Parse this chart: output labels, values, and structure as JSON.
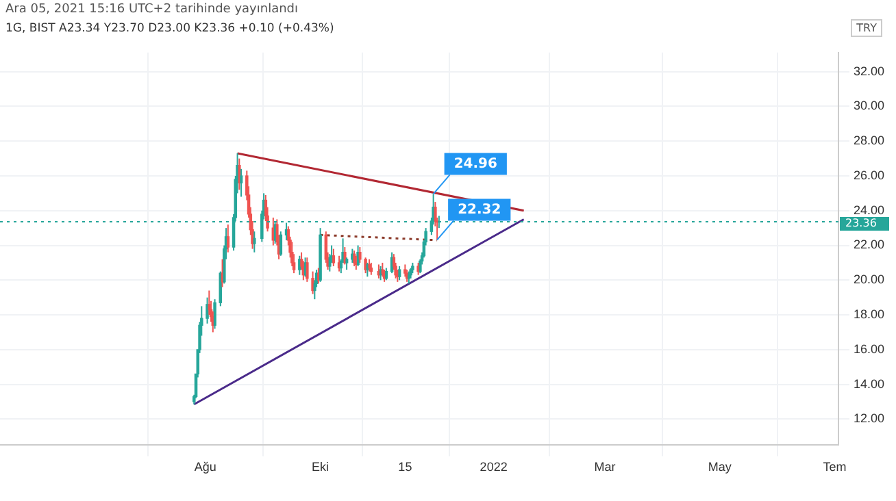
{
  "chart_data": {
    "type": "candlestick",
    "title": "Ara 05, 2021 15:16 UTC+2 tarihinde yayınlandı",
    "subtitle": "1G, BIST  A23.34  Y23.70  D23.00  K23.36  +0.10 (+0.43%)",
    "ylabel": "TRY",
    "x": [
      "2021-07-26",
      "2021-07-27",
      "2021-07-28",
      "2021-07-29",
      "2021-07-30",
      "2021-08-02",
      "2021-08-03",
      "2021-08-04",
      "2021-08-05",
      "2021-08-06",
      "2021-08-09",
      "2021-08-10",
      "2021-08-11",
      "2021-08-12",
      "2021-08-13",
      "2021-08-16",
      "2021-08-17",
      "2021-08-18",
      "2021-08-19",
      "2021-08-20",
      "2021-08-23",
      "2021-08-24",
      "2021-08-25",
      "2021-08-26",
      "2021-08-27",
      "2021-08-31",
      "2021-09-01",
      "2021-09-02",
      "2021-09-03",
      "2021-09-06",
      "2021-09-07",
      "2021-09-08",
      "2021-09-09",
      "2021-09-10",
      "2021-09-13",
      "2021-09-14",
      "2021-09-15",
      "2021-09-16",
      "2021-09-17",
      "2021-09-20",
      "2021-09-21",
      "2021-09-22",
      "2021-09-23",
      "2021-09-24",
      "2021-09-27",
      "2021-09-28",
      "2021-09-29",
      "2021-09-30",
      "2021-10-01",
      "2021-10-04",
      "2021-10-05",
      "2021-10-06",
      "2021-10-07",
      "2021-10-08",
      "2021-10-11",
      "2021-10-12",
      "2021-10-13",
      "2021-10-14",
      "2021-10-15",
      "2021-10-18",
      "2021-10-19",
      "2021-10-20",
      "2021-10-21",
      "2021-10-22",
      "2021-10-25",
      "2021-10-26",
      "2021-10-27",
      "2021-10-28",
      "2021-11-01",
      "2021-11-02",
      "2021-11-03",
      "2021-11-04",
      "2021-11-05",
      "2021-11-08",
      "2021-11-09",
      "2021-11-10",
      "2021-11-11",
      "2021-11-12",
      "2021-11-15",
      "2021-11-16",
      "2021-11-17",
      "2021-11-18",
      "2021-11-19",
      "2021-11-22",
      "2021-11-23",
      "2021-11-24",
      "2021-11-25",
      "2021-11-26",
      "2021-11-29",
      "2021-11-30",
      "2021-12-01",
      "2021-12-02",
      "2021-12-03"
    ],
    "ohlc": [
      [
        13.0,
        13.4,
        12.85,
        13.3
      ],
      [
        13.3,
        14.6,
        13.2,
        14.6
      ],
      [
        14.6,
        16.0,
        14.4,
        16.0
      ],
      [
        16.0,
        17.6,
        15.8,
        17.4
      ],
      [
        17.4,
        18.5,
        16.8,
        17.8
      ],
      [
        17.8,
        19.0,
        17.5,
        18.6
      ],
      [
        18.6,
        19.4,
        18.0,
        18.3
      ],
      [
        18.3,
        18.8,
        17.6,
        17.9
      ],
      [
        17.9,
        18.2,
        17.0,
        17.4
      ],
      [
        17.4,
        18.9,
        17.2,
        18.7
      ],
      [
        18.7,
        20.5,
        18.5,
        20.4
      ],
      [
        20.4,
        21.2,
        19.6,
        19.9
      ],
      [
        19.9,
        22.0,
        19.8,
        21.8
      ],
      [
        21.8,
        23.0,
        21.2,
        22.5
      ],
      [
        22.5,
        23.2,
        21.6,
        21.9
      ],
      [
        21.9,
        23.8,
        21.7,
        23.6
      ],
      [
        23.6,
        26.0,
        23.4,
        25.8
      ],
      [
        25.8,
        27.3,
        25.0,
        26.6
      ],
      [
        26.6,
        27.0,
        25.2,
        25.6
      ],
      [
        25.6,
        26.4,
        24.8,
        26.0
      ],
      [
        26.0,
        26.3,
        24.6,
        24.9
      ],
      [
        24.9,
        25.4,
        23.6,
        23.8
      ],
      [
        23.8,
        24.2,
        22.6,
        22.9
      ],
      [
        22.9,
        23.4,
        21.8,
        22.1
      ],
      [
        22.1,
        22.8,
        21.6,
        22.4
      ],
      [
        22.4,
        24.0,
        22.2,
        23.8
      ],
      [
        23.8,
        25.0,
        23.5,
        24.6
      ],
      [
        24.6,
        24.9,
        23.4,
        23.7
      ],
      [
        23.7,
        24.2,
        22.8,
        23.0
      ],
      [
        23.0,
        23.6,
        22.0,
        22.3
      ],
      [
        22.3,
        23.4,
        22.1,
        23.2
      ],
      [
        23.2,
        23.5,
        22.0,
        22.2
      ],
      [
        22.2,
        22.6,
        21.2,
        21.5
      ],
      [
        21.5,
        22.8,
        21.4,
        22.6
      ],
      [
        22.6,
        23.3,
        22.3,
        22.9
      ],
      [
        22.9,
        23.1,
        22.0,
        22.3
      ],
      [
        22.3,
        22.5,
        21.3,
        21.6
      ],
      [
        21.6,
        22.2,
        20.8,
        21.0
      ],
      [
        21.0,
        21.5,
        20.4,
        20.6
      ],
      [
        20.6,
        21.4,
        20.3,
        21.2
      ],
      [
        21.2,
        21.6,
        20.6,
        20.8
      ],
      [
        20.8,
        21.1,
        20.0,
        20.3
      ],
      [
        20.3,
        21.3,
        20.2,
        21.0
      ],
      [
        21.0,
        21.3,
        19.9,
        20.1
      ],
      [
        20.1,
        20.5,
        19.2,
        19.4
      ],
      [
        19.4,
        20.0,
        18.9,
        19.8
      ],
      [
        19.8,
        20.6,
        19.6,
        20.4
      ],
      [
        20.4,
        20.7,
        19.8,
        20.0
      ],
      [
        20.0,
        23.0,
        19.9,
        22.6
      ],
      [
        22.6,
        22.8,
        21.0,
        21.2
      ],
      [
        21.2,
        21.6,
        20.6,
        20.8
      ],
      [
        20.8,
        21.5,
        20.5,
        21.3
      ],
      [
        21.3,
        22.0,
        21.0,
        21.4
      ],
      [
        21.4,
        21.8,
        20.8,
        21.0
      ],
      [
        21.0,
        21.4,
        20.5,
        20.7
      ],
      [
        20.7,
        21.2,
        20.4,
        21.1
      ],
      [
        21.1,
        22.4,
        21.0,
        21.6
      ],
      [
        21.6,
        21.9,
        20.9,
        21.0
      ],
      [
        21.0,
        21.3,
        20.6,
        21.2
      ],
      [
        21.2,
        21.8,
        21.0,
        21.5
      ],
      [
        21.5,
        21.7,
        20.8,
        21.0
      ],
      [
        21.0,
        21.4,
        20.6,
        20.9
      ],
      [
        20.9,
        22.0,
        20.8,
        21.6
      ],
      [
        21.6,
        21.9,
        21.0,
        21.2
      ],
      [
        21.2,
        21.3,
        20.4,
        20.6
      ],
      [
        20.6,
        21.0,
        20.2,
        20.9
      ],
      [
        20.9,
        21.2,
        20.5,
        20.7
      ],
      [
        20.7,
        21.0,
        20.3,
        20.5
      ],
      [
        20.5,
        20.9,
        20.1,
        20.3
      ],
      [
        20.3,
        20.8,
        20.0,
        20.6
      ],
      [
        20.6,
        21.0,
        20.2,
        20.4
      ],
      [
        20.4,
        20.6,
        19.9,
        20.1
      ],
      [
        20.1,
        20.7,
        20.0,
        20.5
      ],
      [
        20.5,
        21.6,
        20.4,
        21.3
      ],
      [
        21.3,
        21.5,
        20.6,
        20.8
      ],
      [
        20.8,
        21.0,
        20.1,
        20.3
      ],
      [
        20.3,
        20.6,
        19.9,
        20.2
      ],
      [
        20.2,
        20.8,
        20.0,
        20.6
      ],
      [
        20.6,
        20.9,
        20.2,
        20.4
      ],
      [
        20.4,
        20.6,
        19.9,
        20.1
      ],
      [
        20.1,
        20.5,
        19.8,
        20.3
      ],
      [
        20.3,
        20.7,
        20.1,
        20.6
      ],
      [
        20.6,
        21.0,
        20.4,
        20.8
      ],
      [
        20.8,
        21.0,
        20.3,
        20.5
      ],
      [
        20.5,
        21.2,
        20.4,
        21.1
      ],
      [
        21.1,
        21.6,
        20.9,
        21.4
      ],
      [
        21.4,
        22.3,
        21.3,
        22.2
      ],
      [
        22.2,
        23.0,
        22.0,
        22.8
      ],
      [
        22.8,
        23.6,
        22.6,
        23.4
      ],
      [
        23.4,
        24.96,
        23.2,
        24.2
      ],
      [
        24.2,
        24.5,
        23.1,
        23.4
      ],
      [
        23.4,
        23.6,
        22.32,
        23.34
      ],
      [
        23.34,
        23.7,
        23.0,
        23.36
      ]
    ],
    "colors": [
      "#26a69a",
      "#26a69a",
      "#26a69a",
      "#26a69a",
      "#26a69a",
      "#26a69a",
      "#ef5350",
      "#ef5350",
      "#ef5350",
      "#26a69a",
      "#26a69a",
      "#ef5350",
      "#26a69a",
      "#26a69a",
      "#ef5350",
      "#26a69a",
      "#26a69a",
      "#26a69a",
      "#ef5350",
      "#26a69a",
      "#ef5350",
      "#ef5350",
      "#ef5350",
      "#ef5350",
      "#26a69a",
      "#26a69a",
      "#26a69a",
      "#ef5350",
      "#ef5350",
      "#ef5350",
      "#26a69a",
      "#ef5350",
      "#ef5350",
      "#26a69a",
      "#26a69a",
      "#ef5350",
      "#ef5350",
      "#ef5350",
      "#ef5350",
      "#26a69a",
      "#ef5350",
      "#ef5350",
      "#26a69a",
      "#ef5350",
      "#ef5350",
      "#26a69a",
      "#26a69a",
      "#ef5350",
      "#26a69a",
      "#ef5350",
      "#ef5350",
      "#26a69a",
      "#26a69a",
      "#ef5350",
      "#ef5350",
      "#26a69a",
      "#26a69a",
      "#ef5350",
      "#26a69a",
      "#26a69a",
      "#ef5350",
      "#ef5350",
      "#26a69a",
      "#ef5350",
      "#ef5350",
      "#26a69a",
      "#ef5350",
      "#ef5350",
      "#ef5350",
      "#26a69a",
      "#ef5350",
      "#ef5350",
      "#26a69a",
      "#26a69a",
      "#ef5350",
      "#ef5350",
      "#ef5350",
      "#26a69a",
      "#ef5350",
      "#ef5350",
      "#26a69a",
      "#26a69a",
      "#26a69a",
      "#ef5350",
      "#26a69a",
      "#26a69a",
      "#26a69a",
      "#26a69a",
      "#26a69a",
      "#26a69a",
      "#ef5350",
      "#ef5350",
      "#26a69a"
    ],
    "series": [
      {
        "type": "line",
        "color": "#b22833",
        "x": [
          "2021-08-18",
          "2022-01-17"
        ],
        "values": [
          27.3,
          24.0
        ]
      },
      {
        "type": "line",
        "color": "#4a2a8a",
        "x": [
          "2021-07-26",
          "2022-01-17"
        ],
        "values": [
          12.85,
          23.5
        ]
      },
      {
        "type": "line",
        "color": "#8b3a2a",
        "line_style": "dotted",
        "x": [
          "2021-10-01",
          "2021-12-02"
        ],
        "values": [
          22.6,
          22.3
        ]
      }
    ],
    "annotations": [
      {
        "text": "24.96",
        "x": "2021-11-30",
        "y": 24.96
      },
      {
        "text": "22.32",
        "x": "2021-12-02",
        "y": 22.32
      }
    ],
    "ref_lines": [
      {
        "axis": "y",
        "value": 23.36,
        "label": "23.36",
        "color": "#26a69a",
        "line_style": "dotted"
      }
    ],
    "xlim": [
      "2021-04-14",
      "2022-07-03"
    ],
    "xticks": [
      {
        "value": "2021-08-01",
        "label": "Ağu"
      },
      {
        "value": "2021-10-01",
        "label": "Eki"
      },
      {
        "value": "2021-11-15",
        "label": "15"
      },
      {
        "value": "2022-01-01",
        "label": "2022"
      },
      {
        "value": "2022-03-01",
        "label": "Mar"
      },
      {
        "value": "2022-05-01",
        "label": "May"
      },
      {
        "value": "2022-07-01",
        "label": "Tem"
      }
    ],
    "ylim": [
      10.5,
      33.1
    ],
    "yticks": [
      {
        "value": 12,
        "label": "12.00"
      },
      {
        "value": 14,
        "label": "14.00"
      },
      {
        "value": 16,
        "label": "16.00"
      },
      {
        "value": 18,
        "label": "18.00"
      },
      {
        "value": 20,
        "label": "20.00"
      },
      {
        "value": 22,
        "label": "22.00"
      },
      {
        "value": 24,
        "label": "24.00"
      },
      {
        "value": 26,
        "label": "26.00"
      },
      {
        "value": 28,
        "label": "28.00"
      },
      {
        "value": 30,
        "label": "30.00"
      },
      {
        "value": 32,
        "label": "32.00"
      }
    ],
    "grid": true,
    "legend": false
  }
}
